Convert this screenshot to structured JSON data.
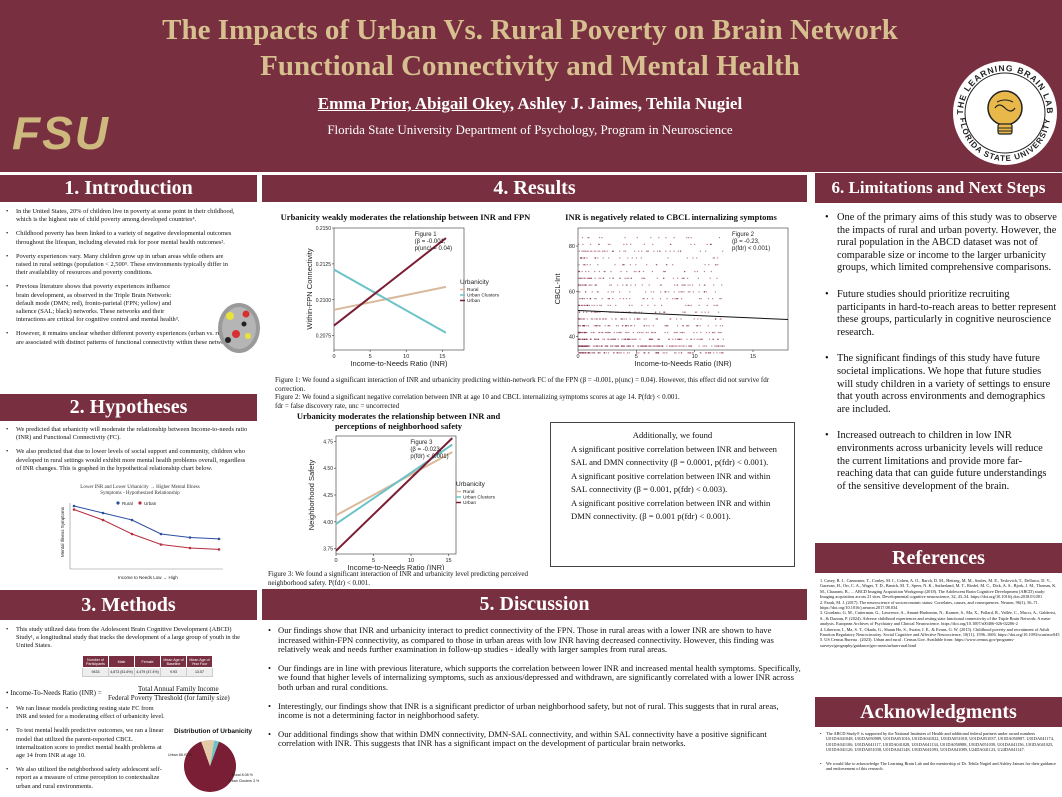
{
  "header": {
    "title": "The Impacts of Urban Vs. Rural Poverty on Brain Network Functional Connectivity and Mental Health",
    "authors_underlined": "Emma Prior, Abigail Okey,",
    "authors_rest": " Ashley J. Jaimes, Tehila Nugiel",
    "affiliation": "Florida State University Department of Psychology, Program in Neuroscience",
    "fsu_logo_text": "FSU",
    "lab_logo_top": "THE LEARNING BRAIN LAB",
    "lab_logo_bottom": "FLORIDA STATE UNIVERSITY"
  },
  "colors": {
    "garnet": "#782f40",
    "gold": "#d6c08f",
    "rural": "#d9b99b",
    "urban_clusters": "#6cc3c7",
    "urban": "#7a1e35"
  },
  "introduction": {
    "heading": "1. Introduction",
    "bullets": [
      "In the United States, 20% of children live in poverty at some point in their childhood, which is the highest rate of child poverty among developed countries⁴.",
      "Childhood poverty has been linked to a variety of negative developmental outcomes throughout the lifespan, including elevated risk for poor mental health outcomes².",
      "Poverty experiences vary. Many children grow up in urban areas while others are raised in rural settings (population < 2,500⁵. These environments typically differ in their availability of resources and poverty conditions.",
      "Previous literature shows that poverty experiences influence brain development, as observed in the Triple Brain Network: default mode (DMN; red), fronto-parietal (FPN; yellow) and salience (SAL; black) networks. These networks and their interactions are critical for cognitive control and mental health³.",
      "However, it remains unclear whether different poverty experiences (urban vs. rural) are associated with distinct patterns of functional connectivity within these networks."
    ]
  },
  "hypotheses": {
    "heading": "2. Hypotheses",
    "bullets": [
      "We predicted that urbanicity will moderate the relationship between Income-to-needs ratio (INR) and Functional Connectivity (FC).",
      "We also predicted that due to lower levels of social support and community, children who developed in rural settings would exhibit more mental health problems overall, regardless of INR changes. This is graphed in the hypothetical relationship chart below."
    ],
    "chart_title": "Lower INR and Lower Urbanicity → Higher Mental Illness Symptoms - Hypothesized Relationship",
    "legend": [
      "Rural",
      "Urban"
    ],
    "xlabel": "Income to Needs Low → High",
    "ylabel": "Mental Illness Symptoms"
  },
  "methods": {
    "heading": "3. Methods",
    "intro": "This study utilized data from the Adolescent Brain Cognitive Development (ABCD) Study¹, a longitudinal study that tracks the development of a large group of youth in the United States.",
    "table_headers": [
      "Number of Participants",
      "Male",
      "Female",
      "Mean Age of Baseline",
      "Mean Age of Year Four"
    ],
    "table_values": [
      "9433",
      "4,873 (51.6%)",
      "4,479 (47.4%)",
      "9.93",
      "13.57"
    ],
    "inr_label": "Income-To-Needs Ratio (INR) =",
    "inr_numerator": "Total Annual Family Income",
    "inr_denominator": "Federal Poverty Threshold (for family size)",
    "bullets": [
      "We ran linear models predicting resting state FC from INR and tested for a moderating effect of urbanicity level.",
      "To test mental health predictive outcomes, we ran a linear model that utilized the parent-reported CBCL internalization score to predict mental health problems at age 14 from INR at age 10.",
      "We also utilized the neighborhood safety adolescent self-report as a measure of crime perception to contextualize urban and rural environments."
    ],
    "pie_title": "Distribution of Urbanicity",
    "pie_labels": [
      "Urban 88.93 %",
      "Rural 8.08 %",
      "Urban Clusters 3 %"
    ]
  },
  "results": {
    "heading": "4. Results",
    "fig1_title": "Urbanicity weakly moderates the relationship between INR and FPN",
    "fig1_note": [
      "Figure 1",
      "(β = -0.001,",
      "p(unc) = 0.04)"
    ],
    "fig2_title": "INR is negatively related to CBCL internalizing symptoms",
    "fig2_note": [
      "Figure 2",
      "(β = -0.23,",
      "p(fdr) < 0.001)"
    ],
    "fig3_title": "Urbanicity moderates the relationship between INR and perceptions of neighborhood safety",
    "fig3_note": [
      "Figure 3",
      "(β = -0.023,",
      "p(fdr) < 0.001)"
    ],
    "legend_title": "Urbanicity",
    "legend_items": [
      "Rural",
      "Urban Clusters",
      "Urban"
    ],
    "caption1": "Figure 1: We found a significant interaction of INR and urbanicity predicting within-network FC of the FPN (β = -0.001, p(unc) = 0.04). However, this effect did not survive fdr correction.",
    "caption2": "Figure 2: We found a significant negative correlation between INR at age 10 and CBCL internalizing symptoms scores at age 14. P(fdr) < 0.001.",
    "caption3": "fdr = false discovery rate, unc = uncorrected",
    "caption4": "Figure 3: We found a significant interaction of INR and urbanicity level predicting perceived neighborhood safety. P(fdr) < 0.001.",
    "additional_title": "Additionally, we found",
    "additional_bullets": [
      "A significant positive correlation between INR and between SAL and DMN connectivity (β = 0.0001, p(fdr) < 0.001).",
      "A significant positive correlation between INR and within SAL connectivity (β = 0.001, p(fdr) < 0.003).",
      "A significant positive correlation between INR and within DMN connectivity. (β = 0.001 p(fdr) < 0.001)."
    ]
  },
  "discussion": {
    "heading": "5. Discussion",
    "bullets": [
      "Our findings show that INR and urbanicity interact to predict connectivity of the FPN. Those in rural areas with a lower INR are shown to have increased within-FPN connectivity, as compared to those in urban areas with low INR having decreased connectivity. However, this finding was relatively weak and needs further examination in follow-up studies - ideally with larger samples from rural areas.",
      "Our findings are in line with previous literature, which supports the correlation between lower INR and increased mental health symptoms. Specifically, we found that higher levels of internalizing symptoms, such as anxious/depressed and withdrawn, are significantly correlated with a lower INR across both urban and rural conditions.",
      "Interestingly, our findings show that INR is a significant predictor of urban neighborhood safety, but not of rural. This suggests that in rural areas, income is not a determining factor in neighborhood safety.",
      "Our additional findings show that within DMN connectivity, DMN-SAL connectivity, and within SAL connectivity have a positive significant correlation with INR. This suggests that INR has a significant impact on the development of particular brain networks."
    ]
  },
  "limitations": {
    "heading": "6. Limitations and Next Steps",
    "bullets": [
      "One of the primary aims of this study was to observe the impacts of rural and urban poverty. However, the rural population in the ABCD dataset was not of comparable size or income to the larger urbanicity groups, which limited comprehensive comparisons.",
      "Future studies should prioritize recruiting participants in hard-to-reach areas to better represent these groups, particularly in cognitive neuroscience research.",
      "The significant findings of this study have future societal implications. We hope that future studies will study children in a variety of settings to ensure that youth across environments and demographics are included.",
      "Increased outreach to children in low INR environments across urbanicity levels will reduce the current limitations and provide more far-reaching data that can guide future understandings of the sensitive development of the brain."
    ]
  },
  "references": {
    "heading": "References",
    "items": [
      "1. Casey, B. J., Cannonier, T., Conley, M. I., Cohen, A. O., Barch, D. M., Heitzeg, M. M., Soules, M. E., Teslovich, T., Dellarco, D. V., Garavan, H., Orr, C. A., Wager, T. D., Banich, M. T., Speer, N. K., Sutherland, M. T., Riedel, M. C., Dick, A. S., Bjork, J. M., Thomas, K. M., Chaarani, B., ... ABCD Imaging Acquisition Workgroup (2018). The Adolescent Brain Cognitive Development (ABCD) study: Imaging acquisition across 21 sites. Developmental cognitive neuroscience, 32, 43–54. https://doi.org/10.1016/j.dcn.2018.03.001",
      "2. Farah, M. J. (2017). The neuroscience of socioeconomic status: Correlates, causes, and consequences. Neuron, 96(1), 56–71. https://doi.org/10.1016/j.neuron.2017.08.034",
      "3. Giordano, G. M., Cutterman, G., Lawrence, A., Amani-Harbonim, N., Kramer, S., Ma, X., Pollard, R., Vallée, C., Mucci, A., Galderisi, S., & Dazzan, P. (2024). Adverse childhood experiences and resting state functional connectivity of the Triple Brain Network: A meta-analysis. European Archives of Psychiatry and Clinical Neuroscience. https://doi.org/10.1007/s00406-026-02206-2",
      "4. Liberzon, I., Ma, S. T., Okada, G., Shaun Ho, S., Swain, J. E., & Evans, G. W. (2015). Childhood poverty and recruitment of Adult Emotion Regulatory Neurocircuitry. Social Cognitive and Affective Neuroscience, 10(11), 1596–1606. https://doi.org/10.1093/scan/nsv045",
      "5. US Census Bureau . (2023). Urban and rural . Census.Gov. Available from: https://www.census.gov/programs-surveys/geography/guidance/geo-areas/urban-rural.html"
    ]
  },
  "acknowledgments": {
    "heading": "Acknowledgments",
    "items": [
      "The ABCD Study® is supported by the National Institutes of Health and additional federal partners under award numbers U01DA041048, U01DA050989, U01DA051016, U01DA041022, U01DA051018, U01DA051037, U01DA050987, U01DA041174, U01DA041106, U01DA041117, U01DA041028, U01DA041134, U01DA050988, U01DA051039, U01DA041156, U01DA041025, U01DA041120, U01DA051038, U01DA041148, U01DA041093, U01DA041089, U24DA041123, U24DA041147.",
      "We would like to acknowledge The Learning Brain Lab and the mentorship of Dr. Tehila Nugiel and Ashley Jaimes for their guidance and endorsement of this research."
    ]
  },
  "chart_data": [
    {
      "type": "line",
      "title": "Urbanicity weakly moderates the relationship between INR and FPN",
      "xlabel": "Income-to-Needs Ratio (INR)",
      "ylabel": "Within-FPN Connectivity",
      "xlim": [
        0,
        18
      ],
      "ylim": [
        0.2065,
        0.215
      ],
      "xticks": [
        0,
        5,
        10,
        15
      ],
      "yticks": [
        0.2075,
        0.21,
        0.2125,
        0.215
      ],
      "x": [
        0,
        15.5
      ],
      "series": [
        {
          "name": "Rural",
          "values": [
            0.2093,
            0.2109
          ]
        },
        {
          "name": "Urban Clusters",
          "values": [
            0.2121,
            0.2077
          ]
        },
        {
          "name": "Urban",
          "values": [
            0.2082,
            0.2143
          ]
        }
      ]
    },
    {
      "type": "scatter",
      "title": "INR is negatively related to CBCL internalizing symptoms",
      "xlabel": "Income-to-Needs Ratio (INR)",
      "ylabel": "CBCL-Int",
      "xlim": [
        0,
        18
      ],
      "ylim": [
        34,
        88
      ],
      "xticks": [
        0,
        5,
        10,
        15
      ],
      "yticks": [
        40,
        60,
        80
      ],
      "fit_line": {
        "x": [
          0,
          18
        ],
        "y": [
          51.5,
          47.5
        ]
      }
    },
    {
      "type": "line",
      "title": "Urbanicity moderates the relationship between INR and perceptions of neighborhood safety",
      "xlabel": "Income-to-Needs Ratio (INR)",
      "ylabel": "Neighborhood Safety",
      "xlim": [
        0,
        16
      ],
      "ylim": [
        3.7,
        4.8
      ],
      "xticks": [
        0,
        5,
        10,
        15
      ],
      "yticks": [
        3.75,
        4.0,
        4.25,
        4.5,
        4.75
      ],
      "x": [
        0,
        15.5
      ],
      "series": [
        {
          "name": "Rural",
          "values": [
            4.06,
            4.65
          ]
        },
        {
          "name": "Urban Clusters",
          "values": [
            3.98,
            4.72
          ]
        },
        {
          "name": "Urban",
          "values": [
            3.73,
            4.78
          ]
        }
      ]
    },
    {
      "type": "line",
      "title": "Lower INR and Lower Urbanicity → Higher Mental Illness Symptoms - Hypothesized Relationship",
      "series": [
        {
          "name": "Rural",
          "values": [
            9,
            8,
            7,
            5,
            4.5,
            4.3
          ]
        },
        {
          "name": "Urban",
          "values": [
            8.5,
            7,
            5,
            3.5,
            3,
            2.8
          ]
        }
      ]
    },
    {
      "type": "pie",
      "title": "Distribution of Urbanicity",
      "categories": [
        "Urban",
        "Rural",
        "Urban Clusters"
      ],
      "values": [
        88.93,
        8.08,
        3
      ]
    }
  ]
}
